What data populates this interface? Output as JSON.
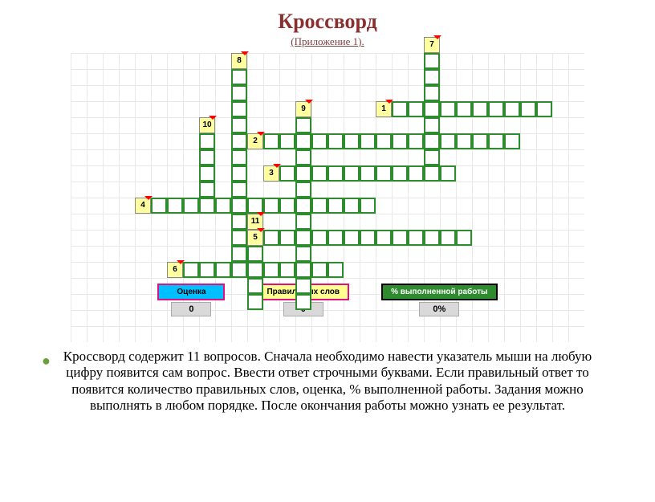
{
  "title": "Кроссворд",
  "subtitle": " (Приложение 1).",
  "crossword": {
    "cell_size": 20,
    "grid_color": "#e8e8e8",
    "cell_border": "#2E8B2E",
    "num_bg": "#ffffa0",
    "words": [
      {
        "num": "7",
        "row": 0,
        "col": 22,
        "dir": "down",
        "len": 7
      },
      {
        "num": "8",
        "row": 1,
        "col": 10,
        "dir": "down",
        "len": 13
      },
      {
        "num": "1",
        "row": 3,
        "col": 20,
        "dir": "across",
        "len": 10
      },
      {
        "num": "9",
        "row": 4,
        "col": 14,
        "dir": "down",
        "len": 12
      },
      {
        "num": "2",
        "row": 5,
        "col": 12,
        "dir": "across",
        "len": 16
      },
      {
        "num": "10",
        "row": 5,
        "col": 8,
        "dir": "down",
        "len": 4
      },
      {
        "num": "3",
        "row": 7,
        "col": 13,
        "dir": "across",
        "len": 11
      },
      {
        "num": "4",
        "row": 9,
        "col": 5,
        "dir": "across",
        "len": 14
      },
      {
        "num": "11",
        "row": 11,
        "col": 11,
        "dir": "down",
        "len": 5
      },
      {
        "num": "5",
        "row": 11,
        "col": 12,
        "dir": "across",
        "len": 13
      },
      {
        "num": "6",
        "row": 13,
        "col": 7,
        "dir": "across",
        "len": 10
      }
    ]
  },
  "stats": {
    "ocenka_label": "Оценка",
    "ocenka_value": "0",
    "prav_label": "Правильных слов",
    "prav_value": "0",
    "pct_label": "% выполненной работы",
    "pct_value": "0%"
  },
  "description": "Кроссворд содержит 11 вопросов. Сначала необходимо навести указатель мыши на любую цифру появится сам вопрос. Ввести ответ строчными буквами. Если правильный ответ то появится количество правильных слов, оценка, %  выполненной работы. Задания можно выполнять в любом порядке. После окончания работы можно узнать ее результат."
}
